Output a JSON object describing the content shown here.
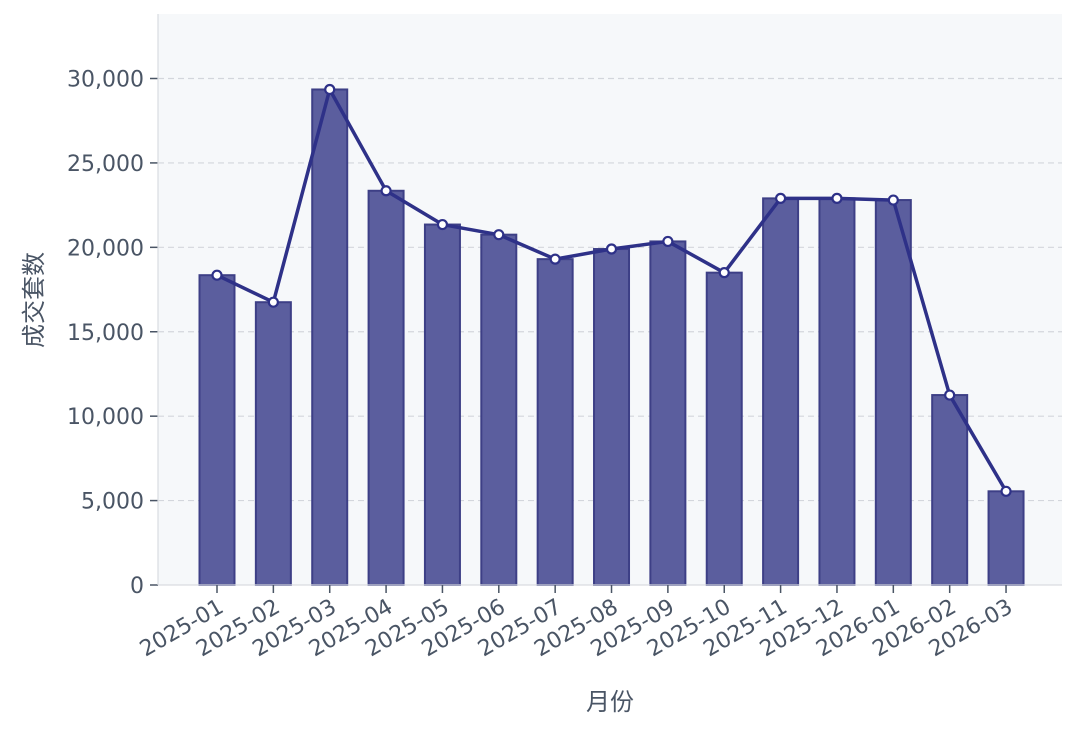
{
  "chart_data": {
    "type": "bar",
    "xlabel": "月份",
    "ylabel": "成交套数",
    "categories": [
      "2025-01",
      "2025-02",
      "2025-03",
      "2025-04",
      "2025-05",
      "2025-06",
      "2025-07",
      "2025-08",
      "2025-09",
      "2025-10",
      "2025-11",
      "2025-12",
      "2026-01",
      "2026-02",
      "2026-03"
    ],
    "series": [
      {
        "type": "bar",
        "values": [
          18350,
          16750,
          29350,
          23350,
          21350,
          20750,
          19300,
          19900,
          20350,
          18500,
          22900,
          22900,
          22800,
          11250,
          5550
        ]
      },
      {
        "type": "line",
        "values": [
          18350,
          16750,
          29350,
          23350,
          21350,
          20750,
          19300,
          19900,
          20350,
          18500,
          22900,
          22900,
          22800,
          11250,
          5550
        ]
      }
    ],
    "y_ticks": [
      "0",
      "5,000",
      "10,000",
      "15,000",
      "20,000",
      "25,000",
      "30,000"
    ],
    "ylim": [
      0,
      33500
    ],
    "grid": "horizontal dashed",
    "colors": {
      "bar": "#5b5e9e",
      "bar_edge": "#3d3f86",
      "line": "#2e3188",
      "plot_bg": "#f6f8fa",
      "text": "#4a5565",
      "grid": "#d3d6dc"
    }
  }
}
